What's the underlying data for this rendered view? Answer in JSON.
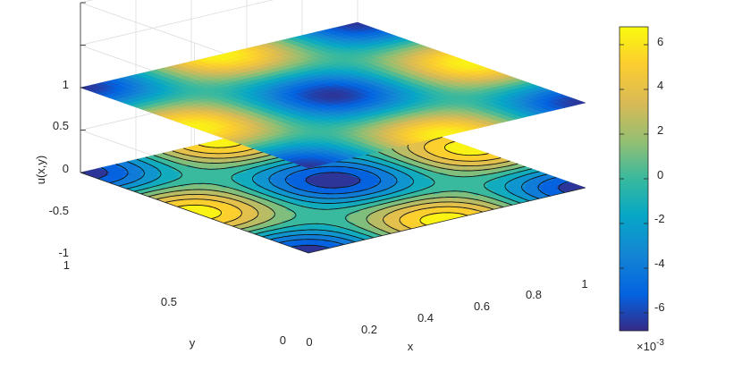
{
  "chart_data": {
    "type": "surface",
    "title": "",
    "xlabel": "x",
    "ylabel": "y",
    "zlabel": "u(x,y)",
    "x_ticks": [
      "0",
      "0.2",
      "0.4",
      "0.6",
      "0.8",
      "1"
    ],
    "y_ticks": [
      "0",
      "0.5",
      "1"
    ],
    "z_ticks": [
      "-1",
      "-0.5",
      "0",
      "0.5",
      "1"
    ],
    "xlim": [
      0,
      1
    ],
    "ylim": [
      0,
      1
    ],
    "zlim": [
      -1,
      1
    ],
    "surface_z_level": 0,
    "contour_z_level": -1,
    "surface_function": "-0.0065 * cos(2πx) * cos(2πy) (estimated)",
    "value_range": [
      -0.0065,
      0.0065
    ],
    "colorbar": {
      "ticks": [
        "-6",
        "-4",
        "-2",
        "0",
        "2",
        "4",
        "6"
      ],
      "exponent_label": "×10",
      "exponent_power": "-3",
      "range": [
        -0.0068,
        0.0068
      ],
      "colormap": "parula"
    },
    "grid": true
  }
}
